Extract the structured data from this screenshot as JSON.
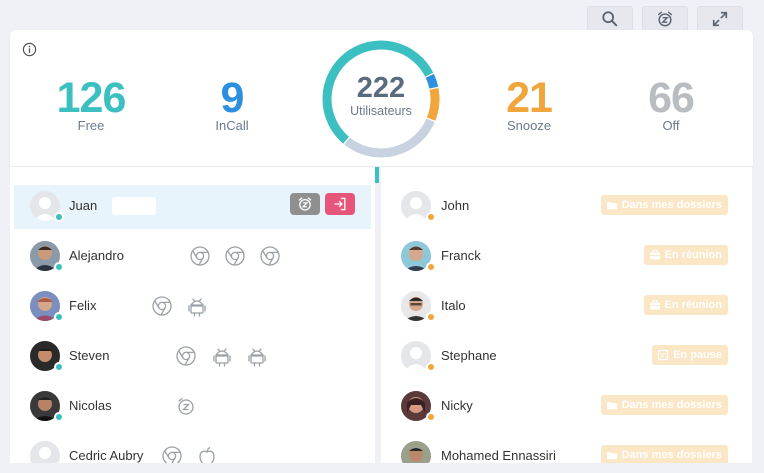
{
  "toolbar": {
    "search_icon": "search-icon",
    "snooze_icon": "alarm-z-icon",
    "expand_icon": "expand-icon"
  },
  "stats": {
    "free": {
      "value": "126",
      "label": "Free",
      "color": "#3cbfc0"
    },
    "incall": {
      "value": "9",
      "label": "InCall",
      "color": "#2c8fe0"
    },
    "total": {
      "value": "222",
      "label": "Utilisateurs"
    },
    "snooze": {
      "value": "21",
      "label": "Snooze",
      "color": "#f0a63a"
    },
    "off": {
      "value": "66",
      "label": "Off",
      "color": "#b9bcc0"
    }
  },
  "donut": {
    "segments": [
      {
        "name": "Free",
        "value": 126,
        "color": "#3cbfc0"
      },
      {
        "name": "InCall",
        "value": 9,
        "color": "#2c8fe0"
      },
      {
        "name": "Snooze",
        "value": 21,
        "color": "#f0a63a"
      },
      {
        "name": "Off",
        "value": 66,
        "color": "#c8d2e0"
      }
    ]
  },
  "left_list": [
    {
      "name": "Juan",
      "status": "teal",
      "selected": true,
      "avatar": "default",
      "devices": [],
      "actions": [
        "snooze",
        "logout"
      ]
    },
    {
      "name": "Alejandro",
      "status": "teal",
      "avatar": "photo-1",
      "devices": [
        "chrome",
        "chrome",
        "chrome"
      ]
    },
    {
      "name": "Felix",
      "status": "teal",
      "avatar": "photo-2",
      "devices": [
        "chrome",
        "android"
      ]
    },
    {
      "name": "Steven",
      "status": "teal",
      "avatar": "photo-3",
      "devices": [
        "chrome",
        "android",
        "android"
      ]
    },
    {
      "name": "Nicolas",
      "status": "teal",
      "avatar": "photo-4",
      "devices": [
        "snooze"
      ]
    },
    {
      "name": "Cedric Aubry",
      "status": "teal",
      "avatar": "default",
      "devices": [
        "chrome",
        "apple"
      ]
    }
  ],
  "right_list": [
    {
      "name": "John",
      "avatar": "default",
      "badge": "Dans mes dossiers",
      "badge_icon": "folder-icon"
    },
    {
      "name": "Franck",
      "avatar": "photo-5",
      "badge": "En réunion",
      "badge_icon": "briefcase-icon"
    },
    {
      "name": "Italo",
      "avatar": "photo-6",
      "badge": "En réunion",
      "badge_icon": "briefcase-icon"
    },
    {
      "name": "Stephane",
      "avatar": "default",
      "badge": "En pause",
      "badge_icon": "coffee-icon"
    },
    {
      "name": "Nicky",
      "avatar": "photo-7",
      "badge": "Dans mes dossiers",
      "badge_icon": "folder-icon"
    },
    {
      "name": "Mohamed Ennassiri",
      "avatar": "photo-8",
      "badge": "Dans mes dossiers",
      "badge_icon": "folder-icon"
    }
  ],
  "colors": {
    "accent": "#3cbfc0",
    "snooze_btn": "#8f8f8f",
    "logout_btn": "#e8557a",
    "badge_bg": "#fbe6c6"
  }
}
